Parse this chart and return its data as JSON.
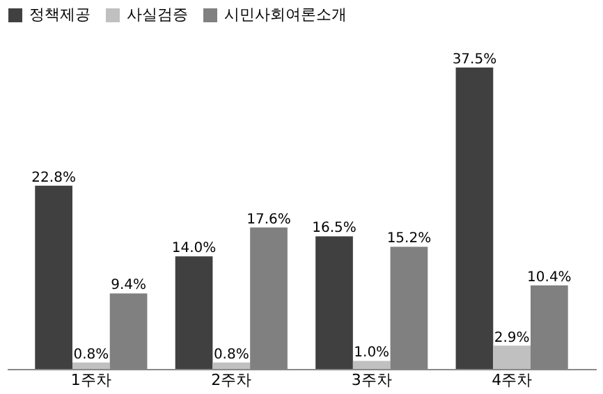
{
  "chart_data": {
    "type": "bar",
    "categories": [
      "1주차",
      "2주차",
      "3주차",
      "4주차"
    ],
    "series": [
      {
        "name": "정책제공",
        "color": "#404040",
        "values": [
          22.8,
          14.0,
          16.5,
          37.5
        ],
        "value_labels": [
          "22.8%",
          "14.0%",
          "16.5%",
          "37.5%"
        ]
      },
      {
        "name": "사실검증",
        "color": "#c0c0c0",
        "values": [
          0.8,
          0.8,
          1.0,
          2.9
        ],
        "value_labels": [
          "0.8%",
          "0.8%",
          "1.0%",
          "2.9%"
        ]
      },
      {
        "name": "시민사회여론소개",
        "color": "#808080",
        "values": [
          9.4,
          17.6,
          15.2,
          10.4
        ],
        "value_labels": [
          "9.4%",
          "17.6%",
          "15.2%",
          "10.4%"
        ]
      }
    ],
    "legend": "top"
  }
}
